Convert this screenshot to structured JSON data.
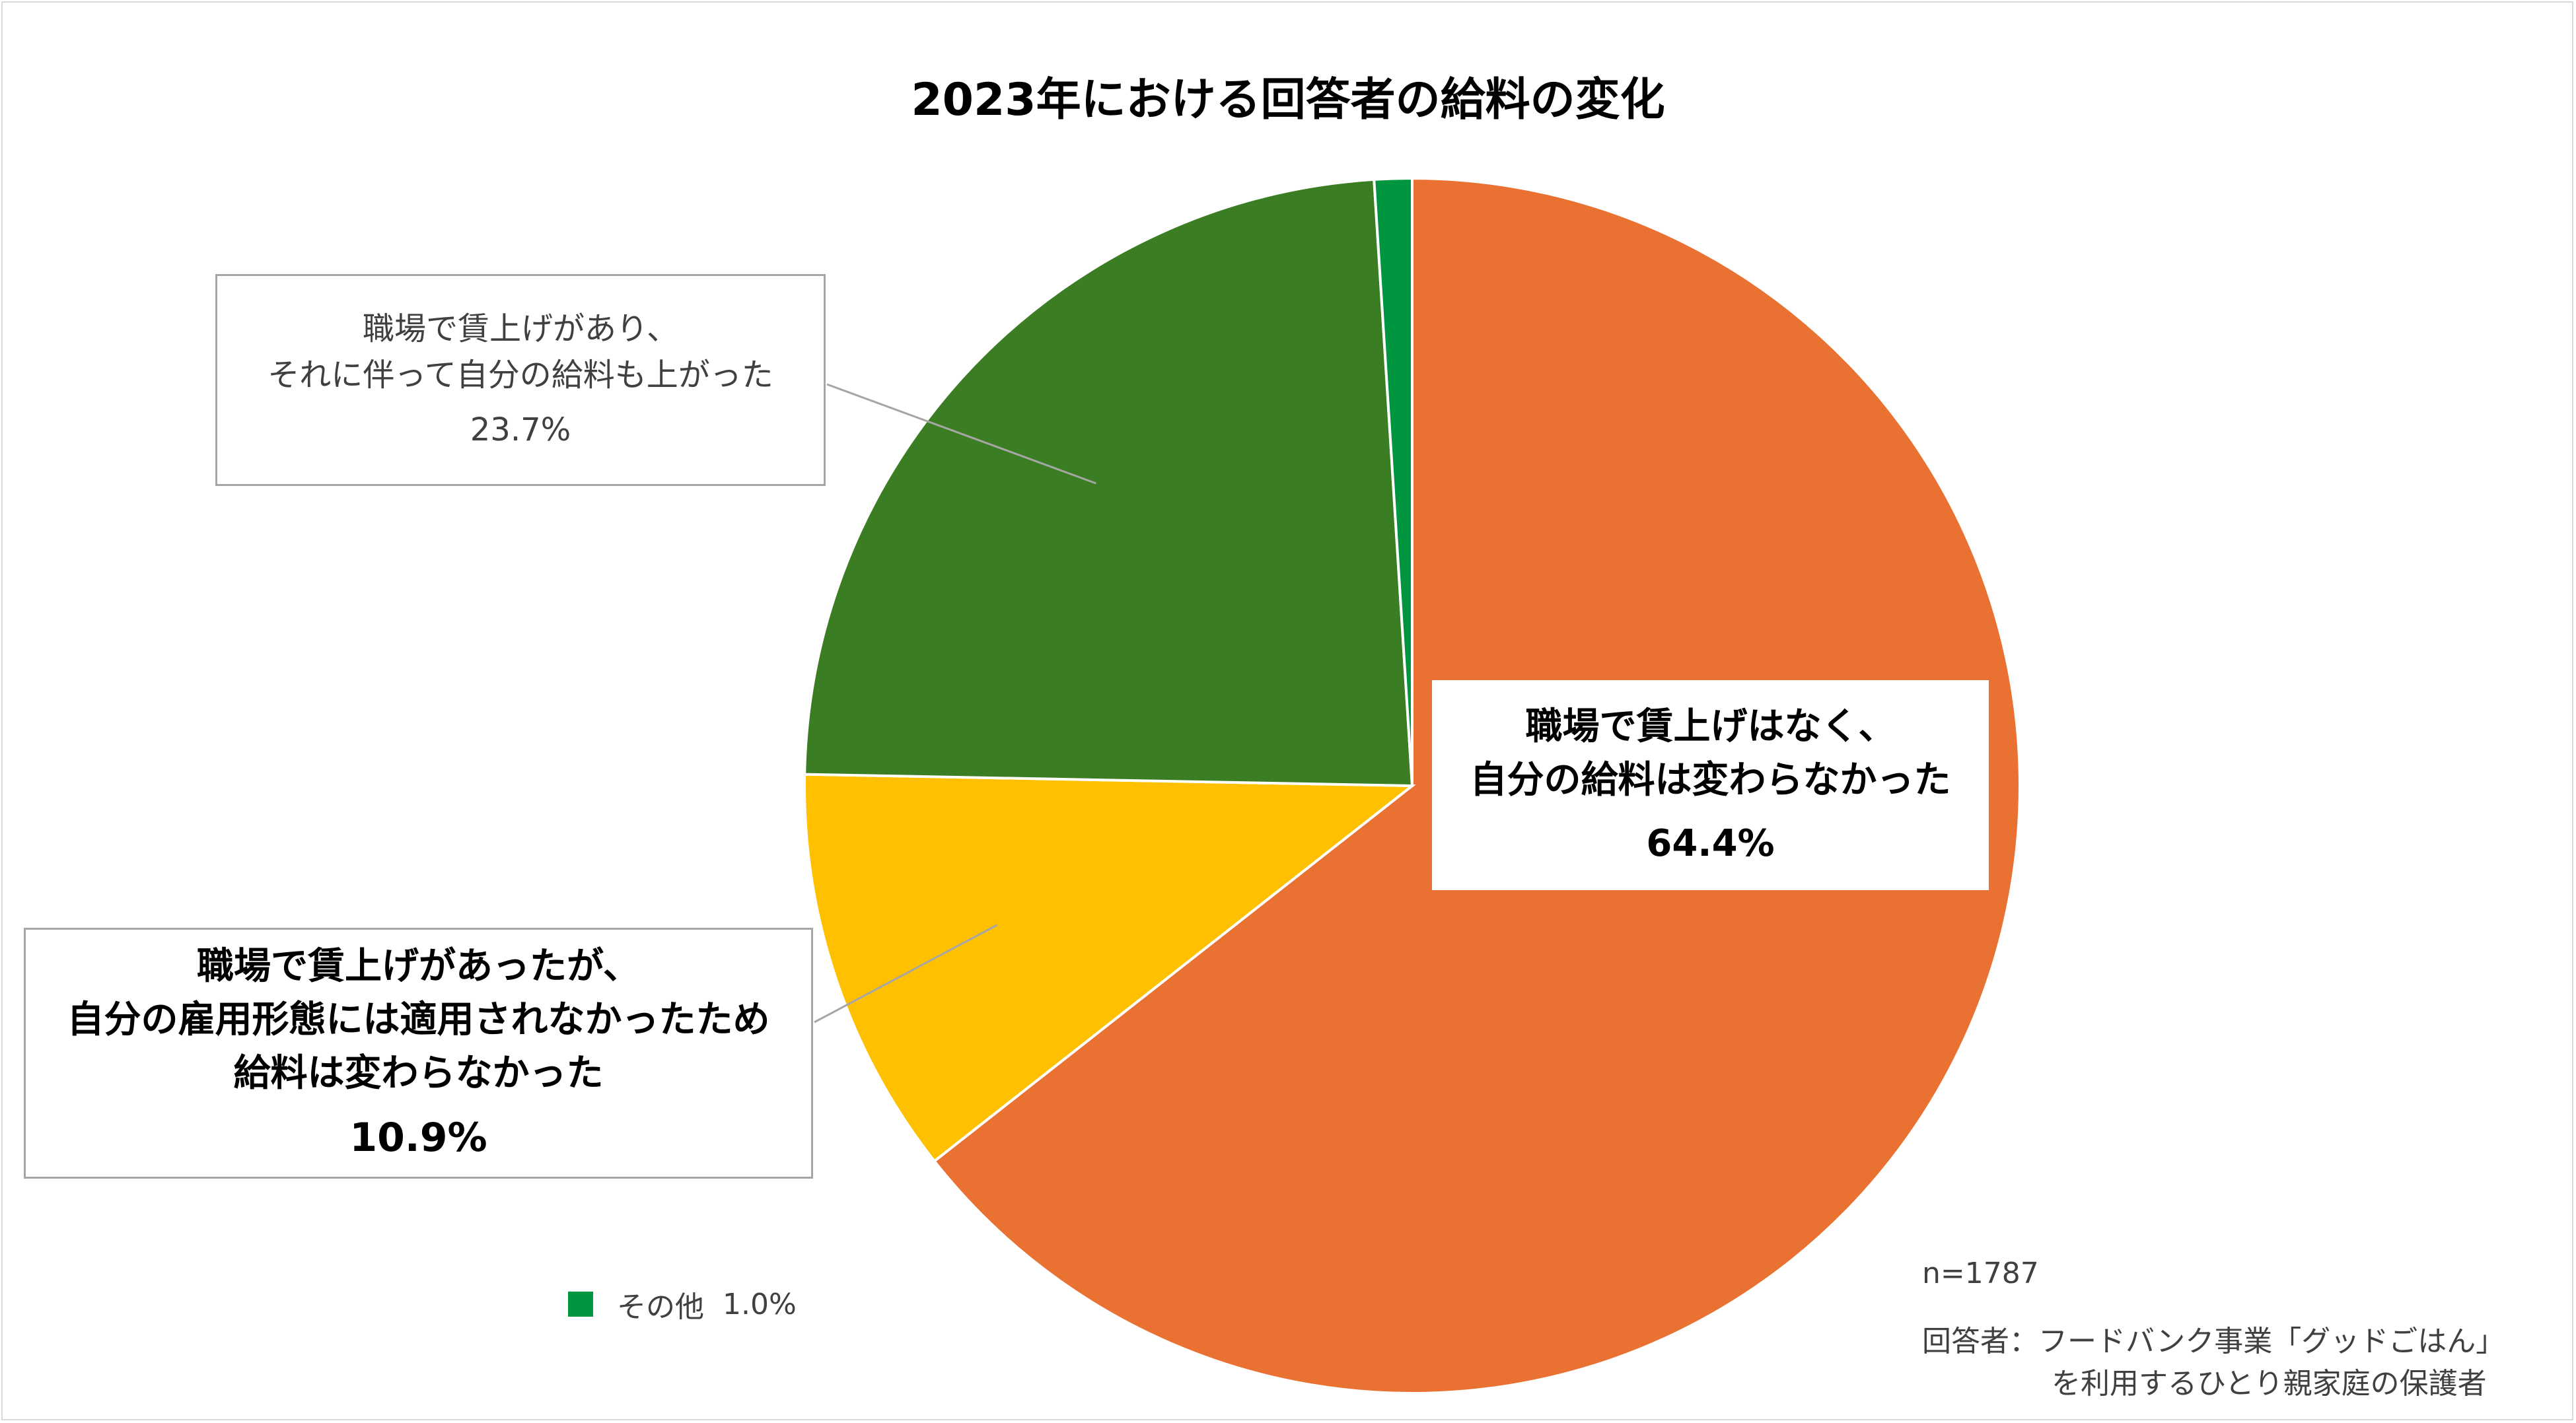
{
  "chart_data": {
    "type": "pie",
    "title": "2023年における回答者の給料の変化",
    "slices": [
      {
        "lines": [
          "職場で賃上げはなく、",
          "自分の給料は変わらなかった"
        ],
        "value": 64.4,
        "label_value": "64.4%",
        "color": "#E97132"
      },
      {
        "lines": [
          "職場で賃上げがあったが、",
          "自分の雇用形態には適用されなかったため",
          "給料は変わらなかった"
        ],
        "value": 10.9,
        "label_value": "10.9%",
        "color": "#FFC000"
      },
      {
        "lines": [
          "職場で賃上げがあり、",
          "それに伴って自分の給料も上がった"
        ],
        "value": 23.7,
        "label_value": "23.7%",
        "color": "#3B7D23"
      },
      {
        "label": "その他",
        "value": 1.0,
        "label_value": "1.0%",
        "color": "#00963F"
      }
    ],
    "start": "12 o'clock",
    "direction": "clockwise",
    "legend": "bottom-left",
    "sample_size": "n=1787",
    "note_lines": [
      "回答者：フードバンク事業「グッドごはん」",
      "を利用するひとり親家庭の保護者"
    ]
  }
}
